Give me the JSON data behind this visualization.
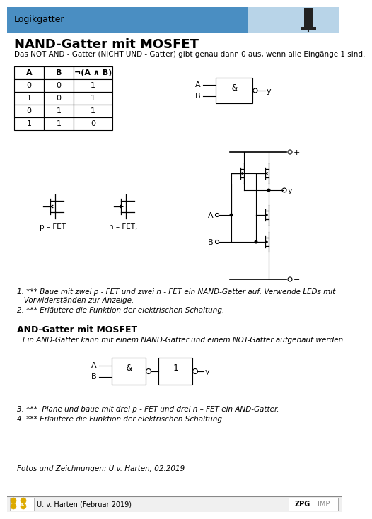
{
  "title_header": "Logikgatter",
  "title_main": "NAND-Gatter mit MOSFET",
  "subtitle": "Das NOT AND - Gatter (NICHT UND - Gatter) gibt genau dann 0 aus, wenn alle Eingänge 1 sind.",
  "truth_table_headers": [
    "A",
    "B",
    "¬(A ∧ B)"
  ],
  "truth_table_rows": [
    [
      "0",
      "0",
      "1"
    ],
    [
      "1",
      "0",
      "1"
    ],
    [
      "0",
      "1",
      "1"
    ],
    [
      "1",
      "1",
      "0"
    ]
  ],
  "label_pfet": "p – FET",
  "label_nfet": "n – FET,",
  "task1a": "1. *** Baue mit zwei p - FET und zwei n - FET ein NAND-Gatter auf. Verwende LEDs mit",
  "task1b": "   Vorwiderständen zur Anzeige.",
  "task2": "2. *** Erläutere die Funktion der elektrischen Schaltung.",
  "section2_title": "AND-Gatter mit MOSFET",
  "section2_text": "Ein AND-Gatter kann mit einem NAND-Gatter und einem NOT-Gatter aufgebaut werden.",
  "task3": "3. ***  Plane und baue mit drei p - FET und drei n – FET ein AND-Gatter.",
  "task4": "4. *** Erläutere die Funktion der elektrischen Schaltung.",
  "footer_text": "Fotos und Zeichnungen: U.v. Harten, 02.2019",
  "footer_credit": "U. v. Harten (Februar 2019)",
  "footer_right": "ZPG",
  "footer_right2": "IMP",
  "bg_header": "#4a8ec2",
  "bg_header2": "#b8d4e8",
  "bg_white": "#ffffff",
  "lw": 0.8
}
